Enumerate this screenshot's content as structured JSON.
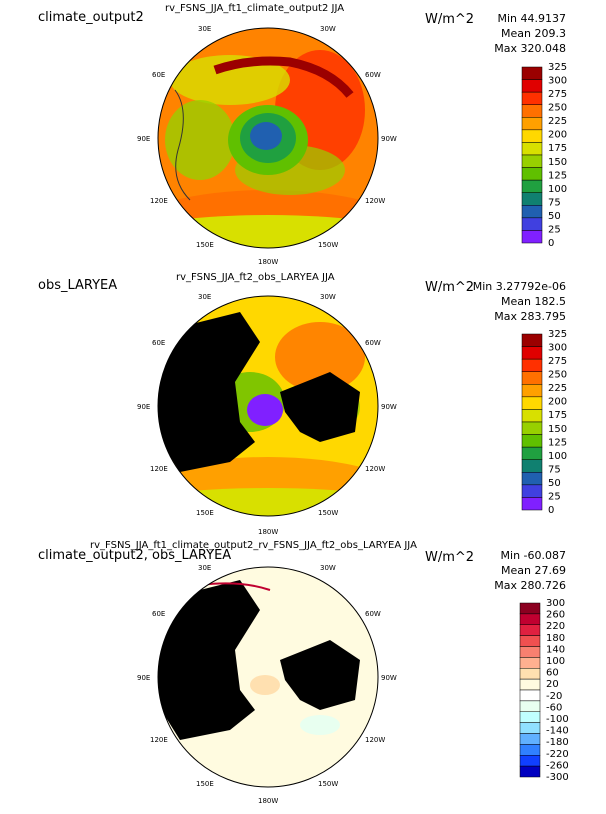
{
  "chart_data": [
    {
      "type": "polar-map",
      "label": "climate_output2",
      "title": "rv_FSNS_JJA_ft1_climate_output2  JJA",
      "units": "W/m^2",
      "stats": {
        "min": "Min 44.9137",
        "mean": "Mean 209.3",
        "max": "Max 320.048"
      },
      "longitude_labels": [
        "30E",
        "30W",
        "60E",
        "60W",
        "90E",
        "90W",
        "120E",
        "120W",
        "150E",
        "150W",
        "180W"
      ],
      "colorbar": {
        "ticks": [
          "325",
          "300",
          "275",
          "250",
          "225",
          "200",
          "175",
          "150",
          "125",
          "100",
          "75",
          "50",
          "25",
          "0"
        ],
        "colors": [
          "#9b0000",
          "#e00000",
          "#ff3000",
          "#ff7000",
          "#ffa000",
          "#ffd800",
          "#d8e000",
          "#98d000",
          "#60c000",
          "#20a040",
          "#108070",
          "#2060b0",
          "#4040e0",
          "#8020ff"
        ]
      }
    },
    {
      "type": "polar-map",
      "label": "obs_LARYEA",
      "title": "rv_FSNS_JJA_ft2_obs_LARYEA  JJA",
      "units": "W/m^2",
      "stats": {
        "min": "Min 3.27792e-06",
        "mean": "Mean 182.5",
        "max": "Max 283.795"
      },
      "longitude_labels": [
        "30E",
        "30W",
        "60E",
        "60W",
        "90E",
        "90W",
        "120E",
        "120W",
        "150E",
        "150W",
        "180W"
      ],
      "colorbar": {
        "ticks": [
          "325",
          "300",
          "275",
          "250",
          "225",
          "200",
          "175",
          "150",
          "125",
          "100",
          "75",
          "50",
          "25",
          "0"
        ],
        "colors": [
          "#9b0000",
          "#e00000",
          "#ff3000",
          "#ff7000",
          "#ffa000",
          "#ffd800",
          "#d8e000",
          "#98d000",
          "#60c000",
          "#20a040",
          "#108070",
          "#2060b0",
          "#4040e0",
          "#8020ff"
        ]
      }
    },
    {
      "type": "polar-map",
      "label": "climate_output2, obs_LARYEA",
      "title": "rv_FSNS_JJA_ft1_climate_output2_rv_FSNS_JJA_ft2_obs_LARYEA  JJA",
      "units": "W/m^2",
      "stats": {
        "min": "Min -60.087",
        "mean": "Mean 27.69",
        "max": "Max 280.726"
      },
      "longitude_labels": [
        "30E",
        "30W",
        "60E",
        "60W",
        "90E",
        "90W",
        "120E",
        "120W",
        "150E",
        "150W",
        "180W"
      ],
      "colorbar": {
        "ticks": [
          "300",
          "260",
          "220",
          "180",
          "140",
          "100",
          "60",
          "20",
          "-20",
          "-60",
          "-100",
          "-140",
          "-180",
          "-220",
          "-260",
          "-300"
        ],
        "colors": [
          "#8b0020",
          "#c00030",
          "#e02040",
          "#f05050",
          "#f88070",
          "#ffb090",
          "#ffe0b0",
          "#fffbe0",
          "#ffffff",
          "#e8fff0",
          "#c0ffff",
          "#90e0ff",
          "#60b0ff",
          "#3080ff",
          "#1040ff",
          "#0000c0"
        ]
      }
    }
  ]
}
